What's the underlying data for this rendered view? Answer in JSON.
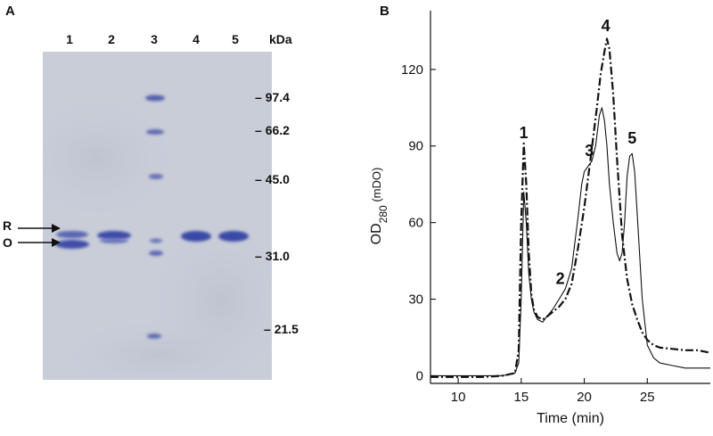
{
  "panel_a": {
    "letter": "A",
    "lanes": [
      "1",
      "2",
      "3",
      "4",
      "5"
    ],
    "unit": "kDa",
    "markers": [
      "97.4",
      "66.2",
      "45.0",
      "31.0",
      "21.5"
    ],
    "band_labels": [
      "R",
      "O"
    ]
  },
  "panel_b": {
    "letter": "B"
  },
  "chart_data": {
    "type": "line",
    "xlabel": "Time (min)",
    "ylabel": "OD280 (mDO)",
    "ylabel_main": "OD",
    "ylabel_sub": "280",
    "ylabel_unit": " (mDO)",
    "xlim": [
      7.8,
      30
    ],
    "ylim": [
      -3,
      143
    ],
    "xticks": [
      10,
      15,
      20,
      25
    ],
    "yticks": [
      0,
      30,
      60,
      90,
      120
    ],
    "grid": false,
    "series": [
      {
        "style": "solid",
        "x": [
          7.8,
          10,
          12,
          13.5,
          14.5,
          14.8,
          15.0,
          15.2,
          15.4,
          15.6,
          15.8,
          16.0,
          16.3,
          16.7,
          17.0,
          17.5,
          18.0,
          18.5,
          19.0,
          19.5,
          19.8,
          20.0,
          20.3,
          20.6,
          20.9,
          21.2,
          21.4,
          21.6,
          21.8,
          22.0,
          22.3,
          22.6,
          22.8,
          23.0,
          23.2,
          23.4,
          23.6,
          23.8,
          24.0,
          24.3,
          24.6,
          25.0,
          25.5,
          26.0,
          27.0,
          28.0,
          29.0,
          30.0
        ],
        "y": [
          0,
          0,
          0,
          0,
          1,
          5,
          30,
          72,
          60,
          40,
          30,
          25,
          22,
          21,
          23,
          26,
          30,
          34,
          42,
          62,
          75,
          80,
          82,
          84,
          90,
          102,
          105,
          100,
          90,
          75,
          60,
          48,
          45,
          48,
          60,
          78,
          86,
          87,
          80,
          55,
          30,
          12,
          7,
          5,
          4,
          3,
          3,
          3
        ]
      },
      {
        "style": "dash-dot",
        "x": [
          7.8,
          10,
          12,
          13.5,
          14.5,
          14.8,
          15.0,
          15.2,
          15.4,
          15.6,
          15.8,
          16.0,
          16.3,
          16.7,
          17.0,
          17.5,
          18.0,
          18.5,
          19.0,
          19.5,
          20.0,
          20.5,
          21.0,
          21.3,
          21.6,
          21.8,
          22.0,
          22.3,
          22.6,
          23.0,
          23.4,
          23.8,
          24.2,
          24.6,
          25.0,
          25.5,
          26.0,
          27.0,
          28.0,
          29.0,
          30.0
        ],
        "y": [
          -0.5,
          -0.5,
          -0.5,
          0,
          1,
          10,
          60,
          91,
          75,
          48,
          32,
          26,
          23,
          22,
          23,
          25,
          27,
          30,
          36,
          50,
          66,
          85,
          105,
          118,
          127,
          132,
          128,
          110,
          85,
          55,
          38,
          28,
          22,
          17,
          14,
          12,
          11,
          10.5,
          10,
          10,
          9
        ]
      }
    ],
    "peak_labels": [
      {
        "text": "1",
        "x": 15.2,
        "y": 93
      },
      {
        "text": "2",
        "x": 18.1,
        "y": 36
      },
      {
        "text": "3",
        "x": 20.4,
        "y": 86
      },
      {
        "text": "4",
        "x": 21.7,
        "y": 135
      },
      {
        "text": "5",
        "x": 23.8,
        "y": 91
      }
    ]
  }
}
